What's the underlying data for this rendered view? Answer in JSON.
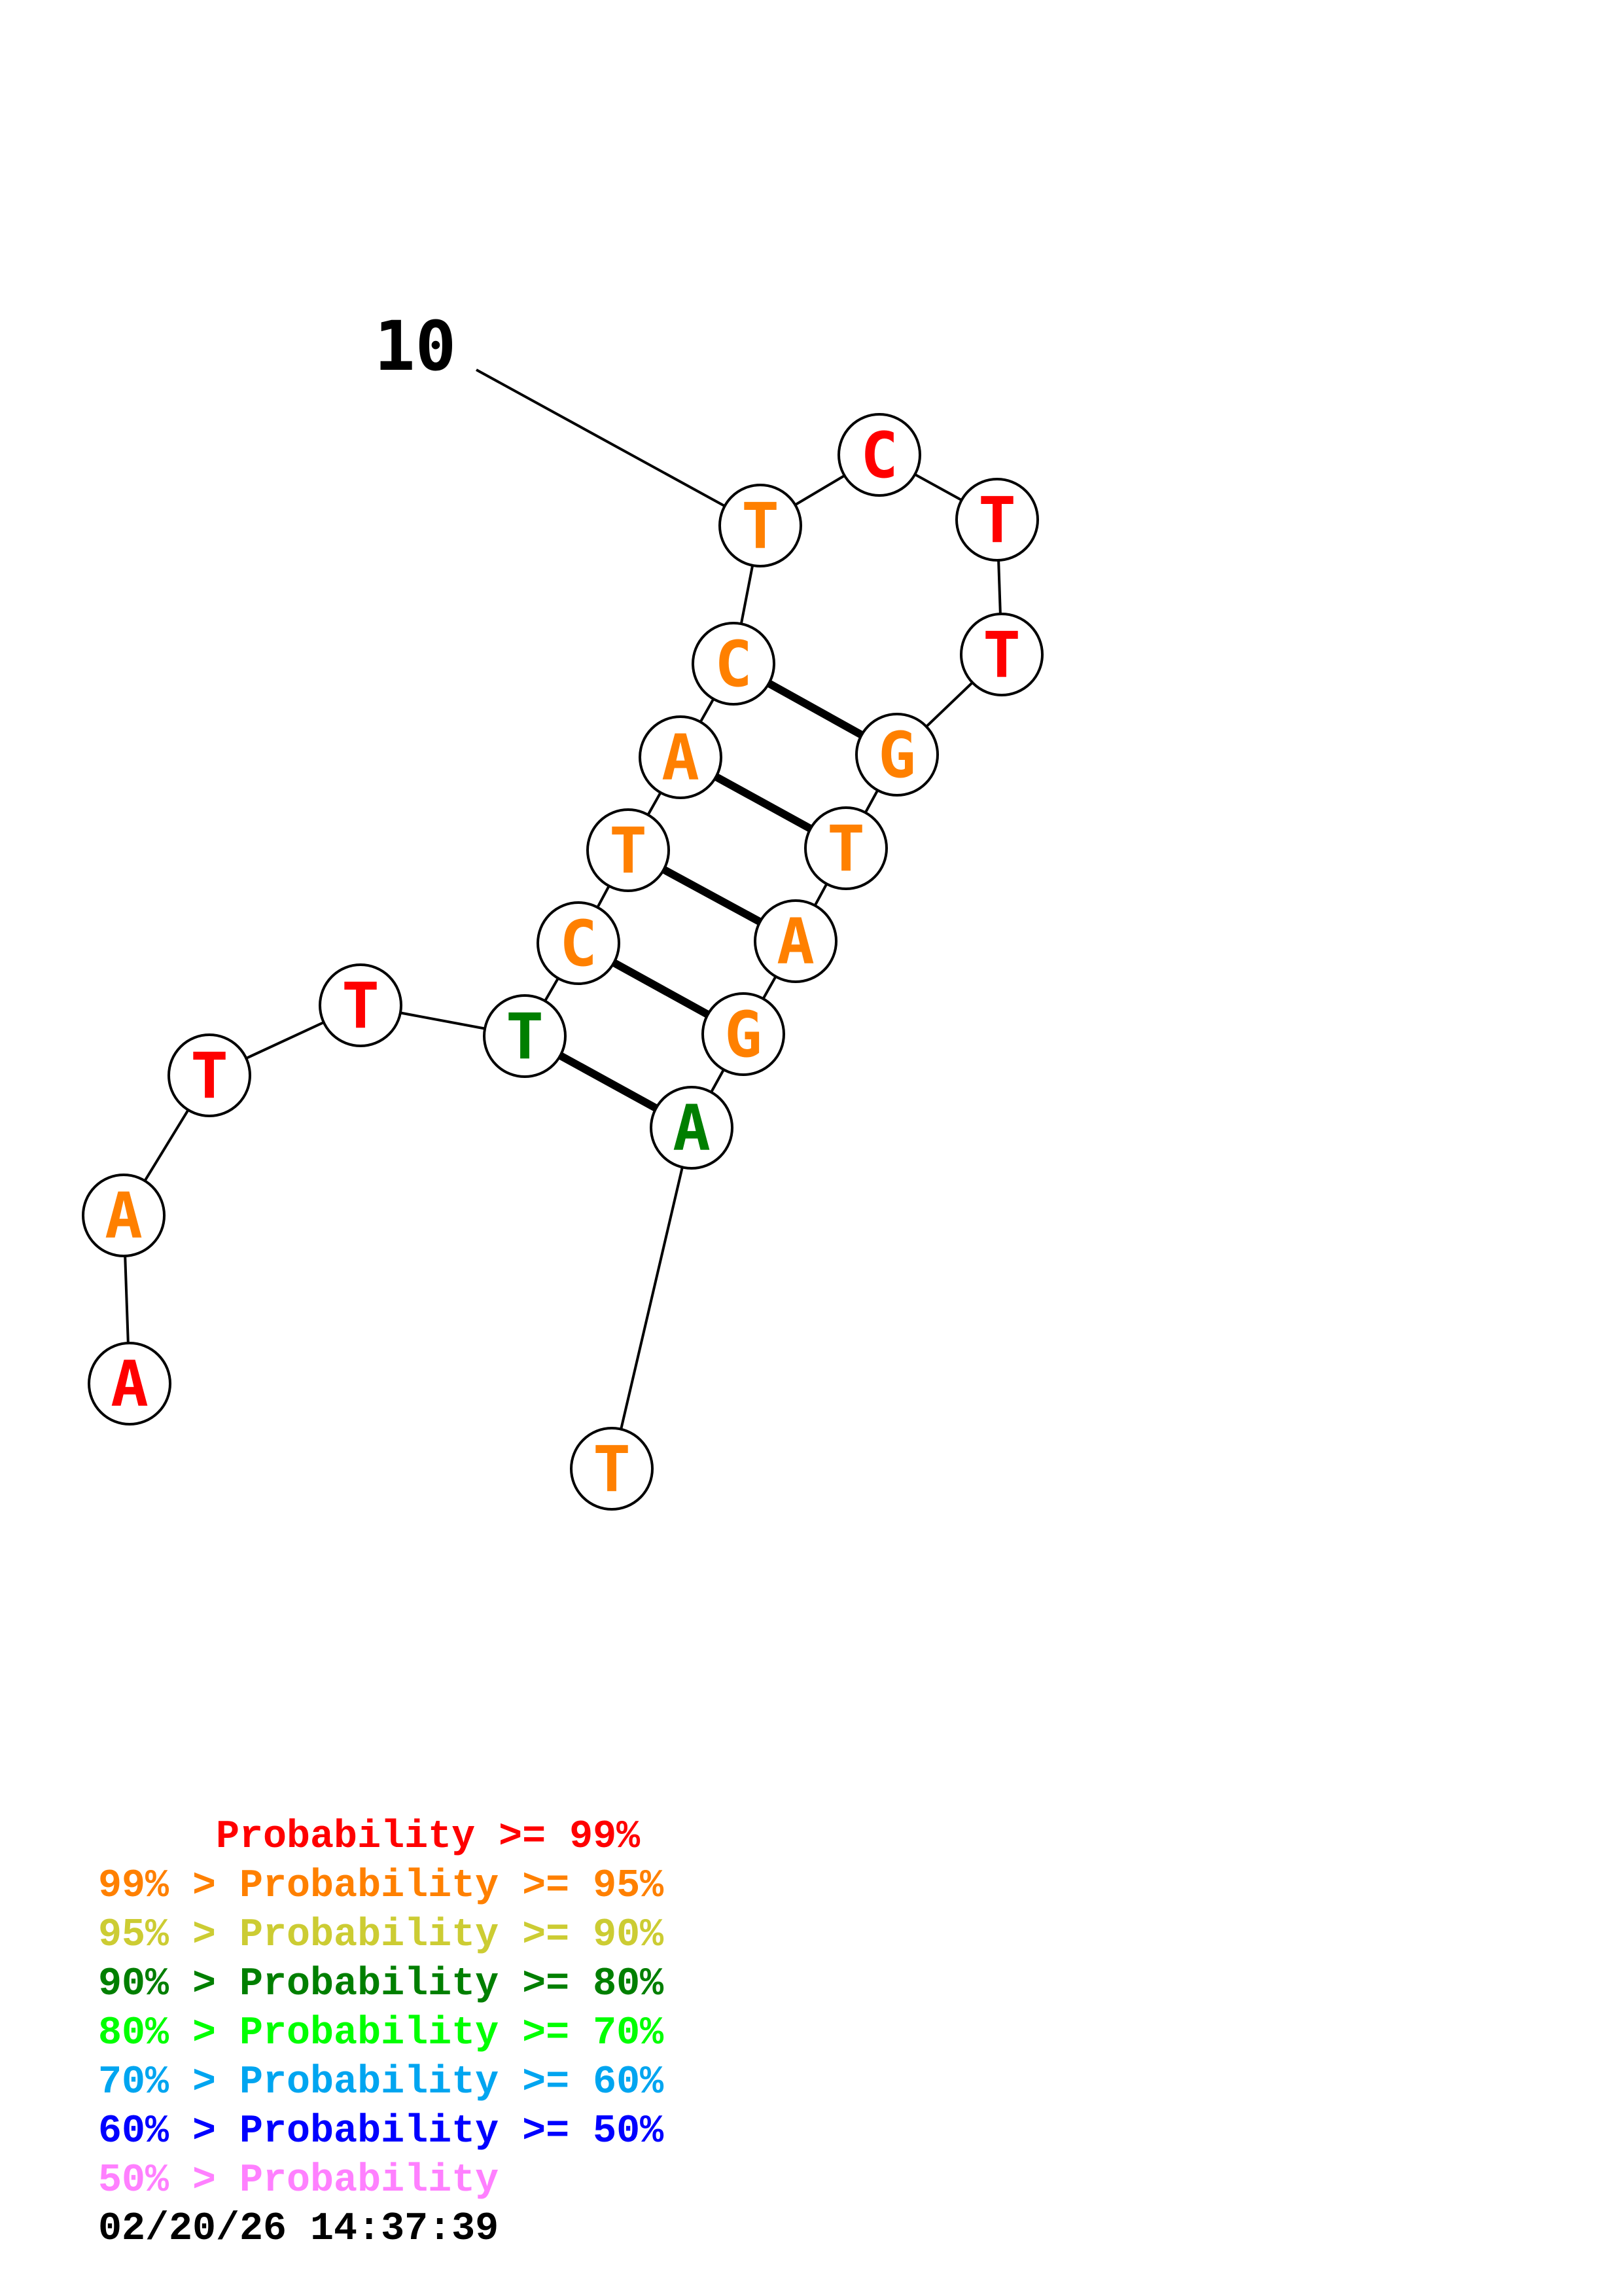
{
  "structure": {
    "position_label": "10",
    "nucleotides": [
      {
        "base": "A",
        "prob_class": "p99"
      },
      {
        "base": "A",
        "prob_class": "p95"
      },
      {
        "base": "T",
        "prob_class": "p99"
      },
      {
        "base": "T",
        "prob_class": "p99"
      },
      {
        "base": "T",
        "prob_class": "p80"
      },
      {
        "base": "C",
        "prob_class": "p95"
      },
      {
        "base": "T",
        "prob_class": "p95"
      },
      {
        "base": "A",
        "prob_class": "p95"
      },
      {
        "base": "C",
        "prob_class": "p95"
      },
      {
        "base": "T",
        "prob_class": "p95"
      },
      {
        "base": "C",
        "prob_class": "p99"
      },
      {
        "base": "T",
        "prob_class": "p99"
      },
      {
        "base": "T",
        "prob_class": "p99"
      },
      {
        "base": "G",
        "prob_class": "p95"
      },
      {
        "base": "T",
        "prob_class": "p95"
      },
      {
        "base": "A",
        "prob_class": "p95"
      },
      {
        "base": "G",
        "prob_class": "p95"
      },
      {
        "base": "A",
        "prob_class": "p80"
      },
      {
        "base": "T",
        "prob_class": "p95"
      }
    ],
    "base_pairs": [
      [
        5,
        18
      ],
      [
        6,
        17
      ],
      [
        7,
        16
      ],
      [
        8,
        15
      ],
      [
        9,
        14
      ]
    ]
  },
  "colors": {
    "p99": "#ff0000",
    "p95": "#ff8000",
    "p90": "#cccc33",
    "p80": "#007f00",
    "p70": "#00ff00",
    "p60": "#00a5f0",
    "p50": "#0000ff",
    "plt50": "#ff80ff"
  },
  "legend": [
    {
      "text": "     Probability >= 99%",
      "prob_class": "p99"
    },
    {
      "text": "99% > Probability >= 95%",
      "prob_class": "p95"
    },
    {
      "text": "95% > Probability >= 90%",
      "prob_class": "p90"
    },
    {
      "text": "90% > Probability >= 80%",
      "prob_class": "p80"
    },
    {
      "text": "80% > Probability >= 70%",
      "prob_class": "p70"
    },
    {
      "text": "70% > Probability >= 60%",
      "prob_class": "p60"
    },
    {
      "text": "60% > Probability >= 50%",
      "prob_class": "p50"
    },
    {
      "text": "50% > Probability",
      "prob_class": "plt50"
    }
  ],
  "timestamp": "02/20/26 14:37:39"
}
